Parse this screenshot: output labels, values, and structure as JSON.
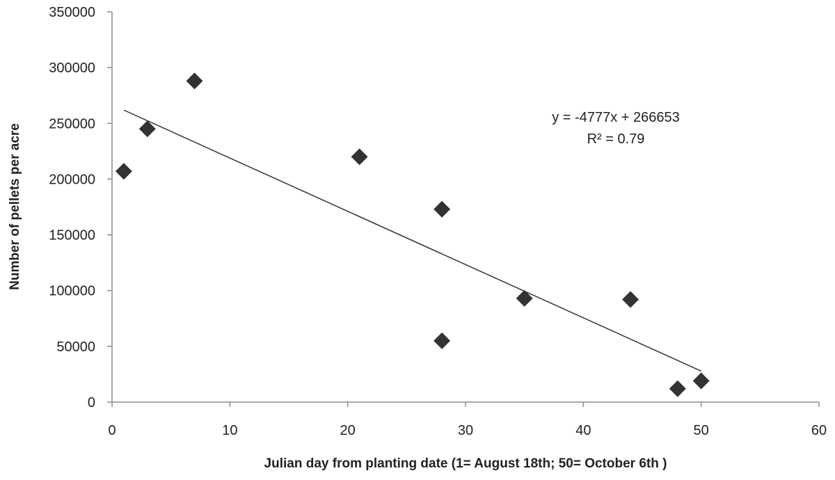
{
  "chart_data": {
    "type": "scatter",
    "title": "",
    "xlabel": "Julian day from planting date (1= August 18th; 50= October 6th )",
    "ylabel": "Number of pellets per acre",
    "xlim": [
      0,
      60
    ],
    "ylim": [
      0,
      350000
    ],
    "xticks": [
      0,
      10,
      20,
      30,
      40,
      50,
      60
    ],
    "yticks": [
      0,
      50000,
      100000,
      150000,
      200000,
      250000,
      300000,
      350000
    ],
    "xtick_labels": [
      "0",
      "10",
      "20",
      "30",
      "40",
      "50",
      "60"
    ],
    "ytick_labels": [
      "0",
      "50000",
      "100000",
      "150000",
      "200000",
      "250000",
      "300000",
      "350000"
    ],
    "grid": false,
    "legend": "none",
    "marker": "diamond",
    "marker_color": "#333333",
    "series": [
      {
        "x": [
          1,
          3,
          7,
          21,
          28,
          28,
          35,
          44,
          48,
          50
        ],
        "y": [
          207000,
          245000,
          288000,
          220000,
          173000,
          55000,
          93000,
          92000,
          12000,
          19000
        ]
      }
    ],
    "trendline": {
      "type": "linear",
      "slope": -4777,
      "intercept": 266653,
      "x_range": [
        1,
        50
      ],
      "color": "#333333"
    },
    "annotations": {
      "equation": "y = -4777x + 266653",
      "r_squared": "R² = 0.79"
    }
  }
}
